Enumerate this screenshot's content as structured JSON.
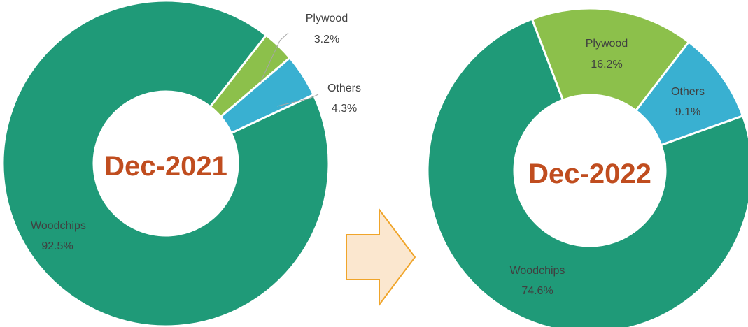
{
  "colors": {
    "woodchips": "#1f9a78",
    "plywood": "#8cc04b",
    "others": "#39b0d1",
    "center_text": "#c04d1f",
    "label_text": "#404040",
    "arrow_fill": "#fbe7cf",
    "arrow_stroke": "#f0a52a"
  },
  "arrow_icon": "right-arrow-icon",
  "chart_data": [
    {
      "type": "pie",
      "style": "donut",
      "title": "Dec-2021",
      "categories": [
        "Woodchips",
        "Plywood",
        "Others"
      ],
      "values": [
        92.5,
        3.2,
        4.3
      ],
      "labels": [
        "92.5%",
        "3.2%",
        "4.3%"
      ]
    },
    {
      "type": "pie",
      "style": "donut",
      "title": "Dec-2022",
      "categories": [
        "Woodchips",
        "Plywood",
        "Others"
      ],
      "values": [
        74.6,
        16.2,
        9.1
      ],
      "labels": [
        "74.6%",
        "16.2%",
        "9.1%"
      ]
    }
  ]
}
